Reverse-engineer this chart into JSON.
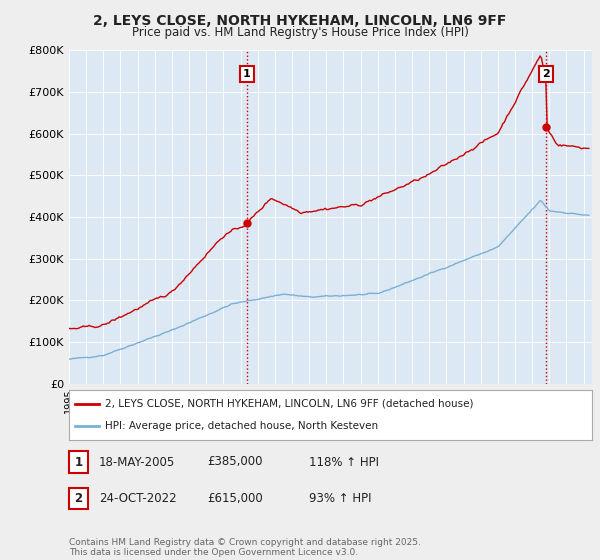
{
  "title1": "2, LEYS CLOSE, NORTH HYKEHAM, LINCOLN, LN6 9FF",
  "title2": "Price paid vs. HM Land Registry's House Price Index (HPI)",
  "ylim": [
    0,
    800000
  ],
  "yticks": [
    0,
    100000,
    200000,
    300000,
    400000,
    500000,
    600000,
    700000,
    800000
  ],
  "ytick_labels": [
    "£0",
    "£100K",
    "£200K",
    "£300K",
    "£400K",
    "£500K",
    "£600K",
    "£700K",
    "£800K"
  ],
  "red_color": "#cc0000",
  "blue_color": "#7ab0d4",
  "bg_color": "#eeeeee",
  "plot_bg_color": "#dce9f5",
  "grid_color": "#ffffff",
  "vline_color": "#cc0000",
  "sale1_x": 2005.38,
  "sale1_y": 385000,
  "sale1_label": "1",
  "sale2_x": 2022.81,
  "sale2_y": 615000,
  "sale2_label": "2",
  "legend_line1": "2, LEYS CLOSE, NORTH HYKEHAM, LINCOLN, LN6 9FF (detached house)",
  "legend_line2": "HPI: Average price, detached house, North Kesteven",
  "info1_label": "1",
  "info1_date": "18-MAY-2005",
  "info1_price": "£385,000",
  "info1_hpi": "118% ↑ HPI",
  "info2_label": "2",
  "info2_date": "24-OCT-2022",
  "info2_price": "£615,000",
  "info2_hpi": "93% ↑ HPI",
  "footer": "Contains HM Land Registry data © Crown copyright and database right 2025.\nThis data is licensed under the Open Government Licence v3.0.",
  "xmin": 1995,
  "xmax": 2025.5
}
